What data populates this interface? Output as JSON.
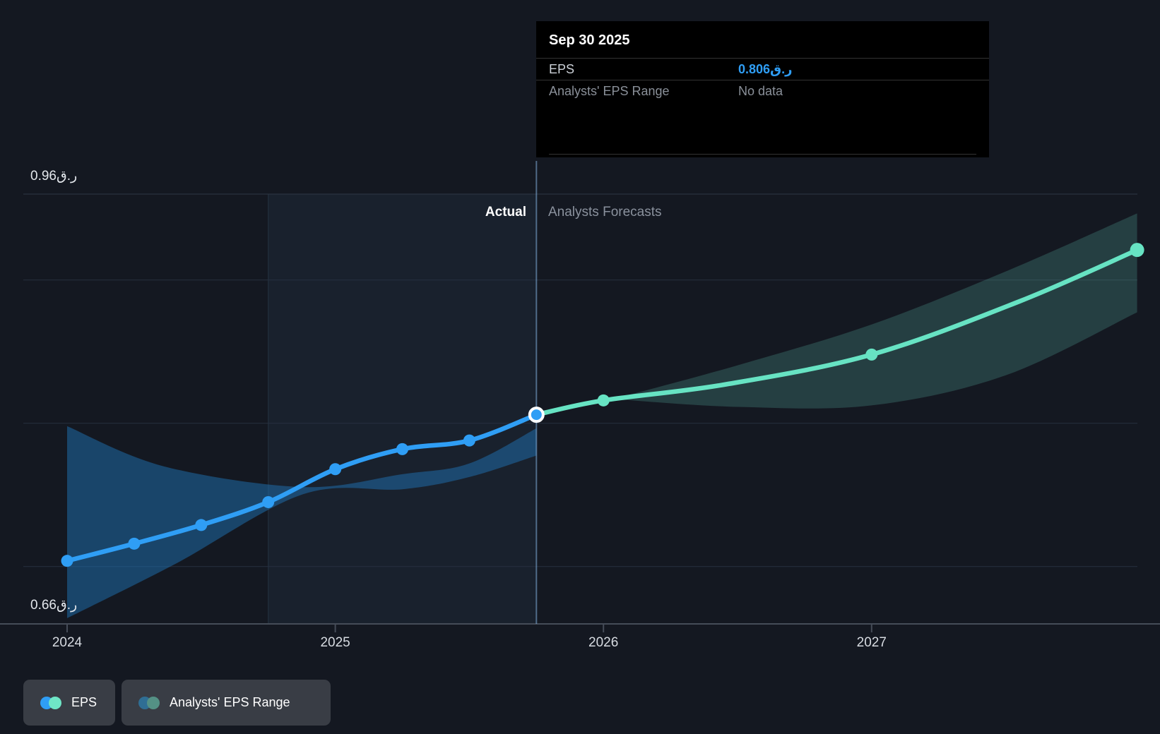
{
  "tooltip": {
    "title": "Sep 30 2025",
    "rows": [
      {
        "label": "EPS",
        "value": "0.806ر.ق"
      },
      {
        "label": "Analysts' EPS Range",
        "value": "No data"
      }
    ]
  },
  "phase_labels": {
    "actual": "Actual",
    "forecast": "Analysts Forecasts"
  },
  "y_axis": {
    "top_label": "0.96ر.ق",
    "bottom_label": "0.66ر.ق"
  },
  "legend": [
    {
      "label": "EPS",
      "icon_colors": [
        "#2f9ef5",
        "#6fe6c6"
      ]
    },
    {
      "label": "Analysts' EPS Range",
      "icon_colors": [
        "#2f6e94",
        "#549185"
      ]
    }
  ],
  "colors": {
    "background": "#141821",
    "actual_line": "#2f9ef5",
    "forecast_line": "#67e3c3",
    "actual_band": "#1f6fae",
    "forecast_band": "#4f9d90",
    "gridline": "#273040",
    "top_gridline": "#2e3745",
    "axis_line": "#454c58",
    "now_line": "rgba(130,175,220,0.55)",
    "highlight_fill": "rgba(96,144,195,0.075)",
    "tooltip_value": "#2f9ef5"
  },
  "chart_data": {
    "type": "line",
    "title": "EPS actual vs analysts' forecasts",
    "currency": "QAR (ر.ق)",
    "x_domain": [
      2024,
      2028
    ],
    "y_domain": [
      0.66,
      0.96
    ],
    "y_gridlines": [
      0.96,
      0.9,
      0.8,
      0.7
    ],
    "y_axis_value": 0.66,
    "grid": true,
    "legend_position": "bottom-left",
    "highlight_span": [
      2024.75,
      2025.75
    ],
    "divider_year": 2025.75,
    "x_ticks": [
      {
        "label": "2024",
        "year": 2024
      },
      {
        "label": "2025",
        "year": 2025
      },
      {
        "label": "2026",
        "year": 2026
      },
      {
        "label": "2027",
        "year": 2027
      }
    ],
    "hover_point": {
      "date": "Sep 30 2025",
      "t": 2025.75,
      "eps": 0.806,
      "range": "No data"
    },
    "series": [
      {
        "name": "EPS (actual)",
        "points": [
          {
            "t": 2024.0,
            "v": 0.704,
            "dot": true
          },
          {
            "t": 2024.25,
            "v": 0.716,
            "dot": true
          },
          {
            "t": 2024.5,
            "v": 0.729,
            "dot": true
          },
          {
            "t": 2024.75,
            "v": 0.745,
            "dot": true
          },
          {
            "t": 2025.0,
            "v": 0.768,
            "dot": true
          },
          {
            "t": 2025.25,
            "v": 0.782,
            "dot": true
          },
          {
            "t": 2025.5,
            "v": 0.788,
            "dot": true
          },
          {
            "t": 2025.75,
            "v": 0.806,
            "dot": false,
            "hover": true
          }
        ]
      },
      {
        "name": "EPS (analysts forecast)",
        "points": [
          {
            "t": 2025.75,
            "v": 0.806,
            "dot": false
          },
          {
            "t": 2026.0,
            "v": 0.816,
            "dot": true
          },
          {
            "t": 2026.45,
            "v": 0.827,
            "dot": false
          },
          {
            "t": 2027.0,
            "v": 0.848,
            "dot": true
          },
          {
            "t": 2027.55,
            "v": 0.885,
            "dot": false
          },
          {
            "t": 2027.99,
            "v": 0.921,
            "dot": true,
            "endpoint": true
          }
        ]
      }
    ],
    "bands": [
      {
        "name": "actual-eps-range",
        "opacity": 0.52,
        "top": [
          [
            2024.0,
            0.798
          ],
          [
            2024.36,
            0.77
          ],
          [
            2024.88,
            0.7555
          ],
          [
            2025.25,
            0.7645
          ],
          [
            2025.5,
            0.772
          ],
          [
            2025.75,
            0.7965
          ]
        ],
        "bottom": [
          [
            2025.75,
            0.7775
          ],
          [
            2025.5,
            0.7625
          ],
          [
            2025.25,
            0.754
          ],
          [
            2024.88,
            0.7505
          ],
          [
            2024.4,
            0.7015
          ],
          [
            2024.0,
            0.664
          ]
        ]
      },
      {
        "name": "forecast-eps-range",
        "opacity": 0.3,
        "top": [
          [
            2026.07,
            0.8185
          ],
          [
            2026.5,
            0.8405
          ],
          [
            2027.0,
            0.869
          ],
          [
            2027.5,
            0.906
          ],
          [
            2027.99,
            0.9465
          ]
        ],
        "bottom": [
          [
            2027.99,
            0.8775
          ],
          [
            2027.5,
            0.8335
          ],
          [
            2027.0,
            0.8125
          ],
          [
            2026.5,
            0.8115
          ],
          [
            2026.07,
            0.8165
          ]
        ]
      }
    ]
  }
}
